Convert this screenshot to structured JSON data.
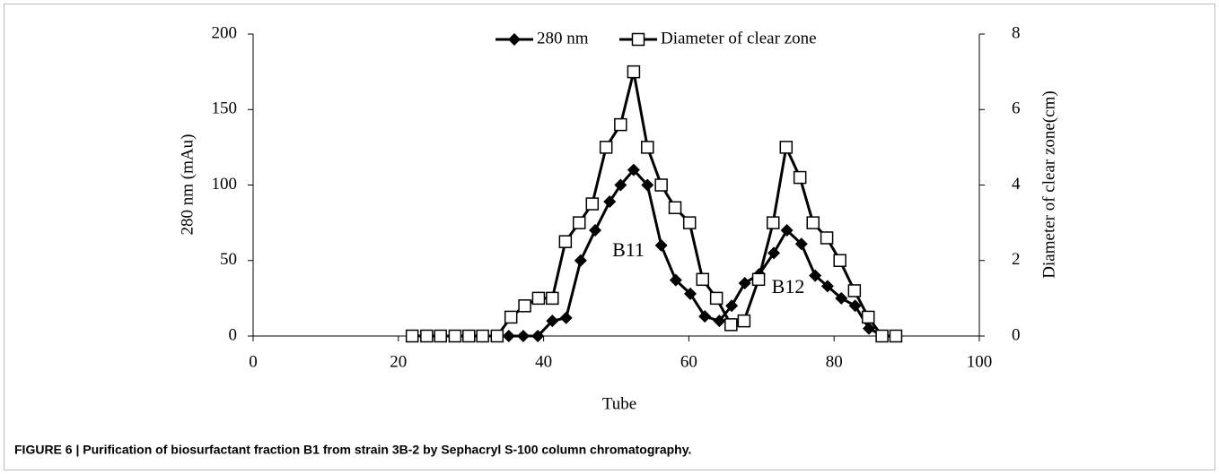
{
  "chart_data": {
    "type": "line",
    "caption": "FIGURE 6 | Purification of biosurfactant fraction B1 from strain 3B-2 by Sephacryl S-100 column chromatography.",
    "xlabel": "Tube",
    "ylabel": "280 nm (mAu)",
    "y2label": "Diameter of clear zone(cm)",
    "xlim": [
      0,
      100
    ],
    "xticks": [
      0,
      20,
      40,
      60,
      80,
      100
    ],
    "ylim": [
      0,
      200
    ],
    "yticks": [
      0,
      50,
      100,
      150,
      200
    ],
    "y2lim": [
      0,
      8
    ],
    "y2ticks": [
      0,
      2,
      4,
      6,
      8
    ],
    "legend": "top",
    "annotations": [
      "B11",
      "B12"
    ],
    "series": [
      {
        "name": "280 nm",
        "color": "#000000",
        "marker": "diamond",
        "x": [
          35.2,
          37.2,
          39.2,
          41.2,
          43.1,
          45.1,
          47.1,
          49.1,
          50.6,
          52.4,
          54.3,
          56.2,
          58.2,
          60.2,
          62.2,
          64.2,
          65.9,
          67.7,
          69.7,
          71.7,
          73.5,
          75.5,
          77.4,
          79.1,
          81.0,
          82.9,
          84.8,
          86.8
        ],
        "values": [
          0,
          0,
          0,
          10,
          12,
          50,
          70,
          89,
          100,
          110,
          100,
          60,
          37,
          28,
          13,
          10,
          20,
          35,
          41,
          55,
          70,
          61,
          40,
          33,
          25,
          20,
          5,
          0
        ]
      },
      {
        "name": "Diameter of clear zone",
        "color": "#000000",
        "marker": "square",
        "axis": "y2",
        "x": [
          21.9,
          23.9,
          25.8,
          27.8,
          29.7,
          31.6,
          33.6,
          35.5,
          37.4,
          39.3,
          41.2,
          43.0,
          44.9,
          46.7,
          48.6,
          50.6,
          52.4,
          54.3,
          56.2,
          58.1,
          60.1,
          61.9,
          63.8,
          65.8,
          67.6,
          69.6,
          71.6,
          73.4,
          75.3,
          77.1,
          79.0,
          80.8,
          82.8,
          84.7,
          86.6,
          88.5
        ],
        "values": [
          0,
          0,
          0,
          0,
          0,
          0,
          0,
          0.5,
          0.8,
          1.0,
          1.0,
          2.5,
          3.0,
          3.5,
          5.0,
          5.6,
          7.0,
          5.0,
          4.0,
          3.4,
          3.0,
          1.5,
          1.0,
          0.3,
          0.4,
          1.5,
          3.0,
          5.0,
          4.2,
          3.0,
          2.6,
          2.0,
          1.2,
          0.5,
          0,
          0
        ]
      }
    ]
  }
}
